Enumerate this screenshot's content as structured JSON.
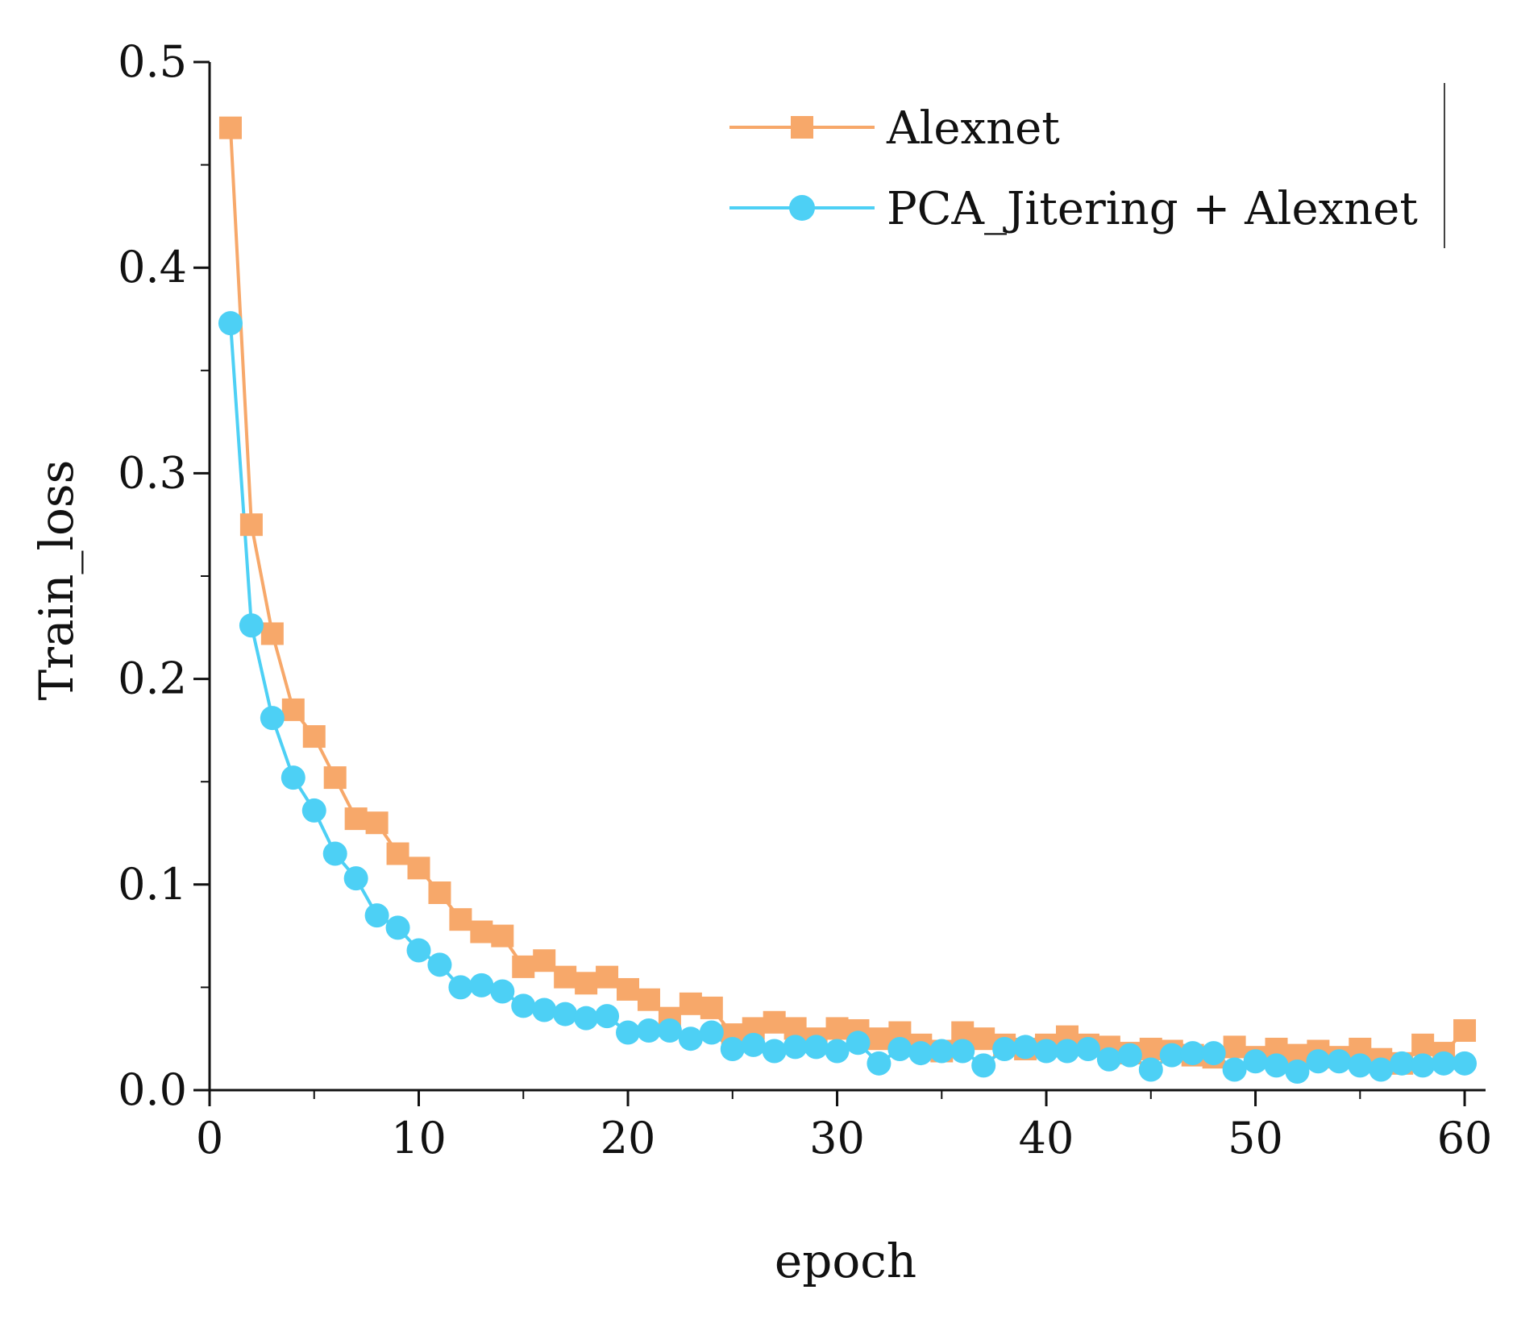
{
  "chart_data": {
    "type": "line",
    "title": "",
    "xlabel": "epoch",
    "ylabel": "Train_loss",
    "xlim": [
      0,
      61
    ],
    "ylim": [
      0,
      0.5
    ],
    "xticks": [
      0,
      10,
      20,
      30,
      40,
      50,
      60
    ],
    "xtick_labels": [
      "0",
      "10",
      "20",
      "30",
      "40",
      "50",
      "60"
    ],
    "yticks": [
      0,
      0.1,
      0.2,
      0.3,
      0.4,
      0.5
    ],
    "ytick_labels": [
      "0.0",
      "0.1",
      "0.2",
      "0.3",
      "0.4",
      "0.5"
    ],
    "grid": false,
    "legend_position": "top-right",
    "x": [
      1,
      2,
      3,
      4,
      5,
      6,
      7,
      8,
      9,
      10,
      11,
      12,
      13,
      14,
      15,
      16,
      17,
      18,
      19,
      20,
      21,
      22,
      23,
      24,
      25,
      26,
      27,
      28,
      29,
      30,
      31,
      32,
      33,
      34,
      35,
      36,
      37,
      38,
      39,
      40,
      41,
      42,
      43,
      44,
      45,
      46,
      47,
      48,
      49,
      50,
      51,
      52,
      53,
      54,
      55,
      56,
      57,
      58,
      59,
      60
    ],
    "series": [
      {
        "name": "Alexnet",
        "color": "#F7A86A",
        "marker": "square",
        "values": [
          0.468,
          0.275,
          0.222,
          0.185,
          0.172,
          0.152,
          0.132,
          0.13,
          0.115,
          0.108,
          0.096,
          0.083,
          0.077,
          0.075,
          0.06,
          0.063,
          0.055,
          0.052,
          0.055,
          0.049,
          0.044,
          0.035,
          0.042,
          0.04,
          0.027,
          0.03,
          0.033,
          0.03,
          0.025,
          0.03,
          0.029,
          0.025,
          0.028,
          0.022,
          0.019,
          0.028,
          0.025,
          0.022,
          0.02,
          0.022,
          0.026,
          0.022,
          0.021,
          0.018,
          0.02,
          0.019,
          0.017,
          0.016,
          0.021,
          0.016,
          0.02,
          0.017,
          0.019,
          0.016,
          0.02,
          0.015,
          0.013,
          0.022,
          0.018,
          0.029
        ]
      },
      {
        "name": "PCA_Jitering + Alexnet",
        "color": "#4DD0F5",
        "marker": "circle",
        "values": [
          0.373,
          0.226,
          0.181,
          0.152,
          0.136,
          0.115,
          0.103,
          0.085,
          0.079,
          0.068,
          0.061,
          0.05,
          0.051,
          0.048,
          0.041,
          0.039,
          0.037,
          0.035,
          0.036,
          0.028,
          0.029,
          0.029,
          0.025,
          0.028,
          0.02,
          0.022,
          0.019,
          0.021,
          0.021,
          0.019,
          0.023,
          0.013,
          0.02,
          0.018,
          0.019,
          0.019,
          0.012,
          0.02,
          0.021,
          0.019,
          0.019,
          0.02,
          0.015,
          0.017,
          0.01,
          0.017,
          0.018,
          0.018,
          0.01,
          0.014,
          0.012,
          0.009,
          0.014,
          0.014,
          0.012,
          0.01,
          0.013,
          0.012,
          0.013,
          0.013
        ]
      }
    ]
  }
}
